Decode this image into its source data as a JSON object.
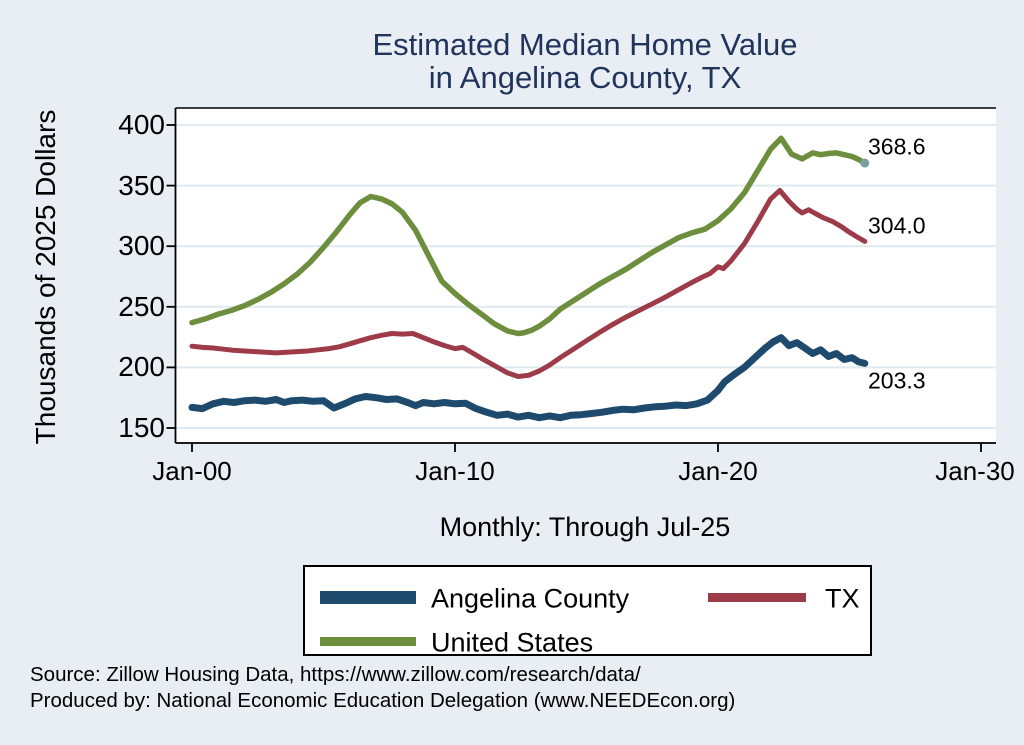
{
  "title": {
    "line1": "Estimated Median Home Value",
    "line2": "in Angelina County, TX"
  },
  "y_axis": {
    "title": "Thousands of 2025 Dollars",
    "ticks": [
      150,
      200,
      250,
      300,
      350,
      400
    ]
  },
  "x_axis": {
    "ticks": [
      {
        "label": "Jan-00",
        "year": 2000
      },
      {
        "label": "Jan-10",
        "year": 2010
      },
      {
        "label": "Jan-20",
        "year": 2020
      },
      {
        "label": "Jan-30",
        "year": 2030
      }
    ],
    "note": "Monthly: Through Jul-25"
  },
  "legend": [
    {
      "label": "Angelina County",
      "color": "#1e4a6d"
    },
    {
      "label": "TX",
      "color": "#9d3b49"
    },
    {
      "label": "United States",
      "color": "#6d8f3d"
    }
  ],
  "source": {
    "line1": "Source: Zillow Housing Data, https://www.zillow.com/research/data/",
    "line2": "Produced by: National Economic Education Delegation (www.NEEDEcon.org)"
  },
  "chart_data": {
    "type": "line",
    "title": "Estimated Median Home Value in Angelina County, TX",
    "xlabel": "Monthly: Through Jul-25",
    "ylabel": "Thousands of 2025 Dollars",
    "x_unit": "decimal year (monthly data, Jan-2000 through Jul-2025)",
    "xlim": [
      1999.35,
      2030.5
    ],
    "ylim": [
      137,
      414
    ],
    "grid": "horizontal",
    "legend_position": "bottom",
    "series": [
      {
        "name": "Angelina County",
        "color": "#1e4a6d",
        "end_label": "203.3",
        "points": [
          [
            2000.0,
            167
          ],
          [
            2000.4,
            166
          ],
          [
            2000.8,
            170
          ],
          [
            2001.2,
            172
          ],
          [
            2001.6,
            171
          ],
          [
            2002.0,
            172.5
          ],
          [
            2002.4,
            173
          ],
          [
            2002.8,
            172
          ],
          [
            2003.2,
            173.5
          ],
          [
            2003.5,
            171
          ],
          [
            2003.8,
            172.5
          ],
          [
            2004.2,
            173
          ],
          [
            2004.6,
            172
          ],
          [
            2005.0,
            172.5
          ],
          [
            2005.4,
            166.5
          ],
          [
            2005.8,
            170
          ],
          [
            2006.2,
            174
          ],
          [
            2006.6,
            176
          ],
          [
            2007.0,
            175
          ],
          [
            2007.4,
            173.5
          ],
          [
            2007.8,
            174
          ],
          [
            2008.2,
            171
          ],
          [
            2008.5,
            168.5
          ],
          [
            2008.8,
            171
          ],
          [
            2009.2,
            170
          ],
          [
            2009.6,
            171
          ],
          [
            2010.0,
            170
          ],
          [
            2010.4,
            170.5
          ],
          [
            2010.8,
            166
          ],
          [
            2011.2,
            163
          ],
          [
            2011.6,
            160.5
          ],
          [
            2012.0,
            161.5
          ],
          [
            2012.4,
            159
          ],
          [
            2012.8,
            160.5
          ],
          [
            2013.2,
            158.5
          ],
          [
            2013.6,
            160
          ],
          [
            2014.0,
            158.5
          ],
          [
            2014.4,
            160.5
          ],
          [
            2014.8,
            161
          ],
          [
            2015.2,
            162
          ],
          [
            2015.6,
            163
          ],
          [
            2016.0,
            164.5
          ],
          [
            2016.4,
            165.5
          ],
          [
            2016.8,
            165
          ],
          [
            2017.2,
            166.5
          ],
          [
            2017.6,
            167.5
          ],
          [
            2018.0,
            168
          ],
          [
            2018.4,
            169
          ],
          [
            2018.8,
            168.5
          ],
          [
            2019.2,
            170
          ],
          [
            2019.6,
            173
          ],
          [
            2020.0,
            181
          ],
          [
            2020.25,
            188
          ],
          [
            2020.6,
            194
          ],
          [
            2021.0,
            200
          ],
          [
            2021.4,
            208
          ],
          [
            2021.8,
            216
          ],
          [
            2022.1,
            221
          ],
          [
            2022.4,
            224.5
          ],
          [
            2022.7,
            218
          ],
          [
            2023.0,
            220.5
          ],
          [
            2023.3,
            216
          ],
          [
            2023.6,
            211.5
          ],
          [
            2023.9,
            214.5
          ],
          [
            2024.2,
            209
          ],
          [
            2024.5,
            211.5
          ],
          [
            2024.8,
            206.5
          ],
          [
            2025.1,
            208
          ],
          [
            2025.35,
            204.5
          ],
          [
            2025.58,
            203.3
          ]
        ]
      },
      {
        "name": "TX",
        "color": "#9d3b49",
        "end_label": "304.0",
        "points": [
          [
            2000.0,
            217.5
          ],
          [
            2000.4,
            216.5
          ],
          [
            2000.8,
            216
          ],
          [
            2001.2,
            215
          ],
          [
            2001.6,
            214
          ],
          [
            2002.0,
            213.5
          ],
          [
            2002.4,
            213
          ],
          [
            2002.8,
            212.5
          ],
          [
            2003.2,
            212
          ],
          [
            2003.6,
            212.5
          ],
          [
            2004.0,
            213
          ],
          [
            2004.4,
            213.5
          ],
          [
            2004.8,
            214.5
          ],
          [
            2005.2,
            215.5
          ],
          [
            2005.6,
            217
          ],
          [
            2006.0,
            219.5
          ],
          [
            2006.4,
            222
          ],
          [
            2006.8,
            224.5
          ],
          [
            2007.2,
            226.5
          ],
          [
            2007.6,
            228
          ],
          [
            2008.0,
            227.5
          ],
          [
            2008.4,
            228
          ],
          [
            2008.8,
            224.5
          ],
          [
            2009.2,
            221
          ],
          [
            2009.6,
            218
          ],
          [
            2010.0,
            215.5
          ],
          [
            2010.3,
            216.5
          ],
          [
            2010.7,
            211.5
          ],
          [
            2011.0,
            207.5
          ],
          [
            2011.5,
            201.5
          ],
          [
            2012.0,
            195.5
          ],
          [
            2012.4,
            192.5
          ],
          [
            2012.8,
            193.5
          ],
          [
            2013.2,
            197
          ],
          [
            2013.6,
            202
          ],
          [
            2014.0,
            208
          ],
          [
            2014.5,
            215
          ],
          [
            2015.0,
            222
          ],
          [
            2015.5,
            229
          ],
          [
            2016.0,
            235.5
          ],
          [
            2016.5,
            241.5
          ],
          [
            2017.0,
            247
          ],
          [
            2017.5,
            252.5
          ],
          [
            2018.0,
            258
          ],
          [
            2018.5,
            264
          ],
          [
            2019.0,
            270
          ],
          [
            2019.4,
            274.5
          ],
          [
            2019.7,
            277.5
          ],
          [
            2020.0,
            283
          ],
          [
            2020.2,
            281.5
          ],
          [
            2020.5,
            288
          ],
          [
            2021.0,
            302
          ],
          [
            2021.5,
            320
          ],
          [
            2022.0,
            339
          ],
          [
            2022.35,
            346
          ],
          [
            2022.7,
            337
          ],
          [
            2023.0,
            330.5
          ],
          [
            2023.2,
            327.5
          ],
          [
            2023.45,
            330
          ],
          [
            2023.7,
            327
          ],
          [
            2024.0,
            323.5
          ],
          [
            2024.35,
            320.5
          ],
          [
            2024.7,
            316
          ],
          [
            2025.0,
            311.5
          ],
          [
            2025.3,
            307.5
          ],
          [
            2025.58,
            304.0
          ]
        ]
      },
      {
        "name": "United States",
        "color": "#6d8f3d",
        "end_label": "368.6",
        "end_dot_color": "#7e9fa2",
        "points": [
          [
            2000.0,
            237
          ],
          [
            2000.5,
            240
          ],
          [
            2001.0,
            244
          ],
          [
            2001.5,
            247
          ],
          [
            2002.0,
            251
          ],
          [
            2002.5,
            256
          ],
          [
            2003.0,
            262
          ],
          [
            2003.5,
            269
          ],
          [
            2004.0,
            277
          ],
          [
            2004.5,
            287
          ],
          [
            2005.0,
            299
          ],
          [
            2005.5,
            312
          ],
          [
            2006.0,
            326
          ],
          [
            2006.4,
            336
          ],
          [
            2006.8,
            341
          ],
          [
            2007.2,
            339
          ],
          [
            2007.6,
            335
          ],
          [
            2008.0,
            328
          ],
          [
            2008.5,
            313
          ],
          [
            2009.0,
            292
          ],
          [
            2009.5,
            271
          ],
          [
            2010.0,
            261
          ],
          [
            2010.5,
            252
          ],
          [
            2011.0,
            244
          ],
          [
            2011.5,
            236
          ],
          [
            2012.0,
            230
          ],
          [
            2012.4,
            228
          ],
          [
            2012.6,
            228.5
          ],
          [
            2012.9,
            230.5
          ],
          [
            2013.2,
            234
          ],
          [
            2013.6,
            240
          ],
          [
            2014.0,
            248
          ],
          [
            2014.5,
            255
          ],
          [
            2015.0,
            262
          ],
          [
            2015.5,
            269
          ],
          [
            2016.0,
            275
          ],
          [
            2016.5,
            281
          ],
          [
            2017.0,
            288
          ],
          [
            2017.5,
            295
          ],
          [
            2018.0,
            301
          ],
          [
            2018.5,
            307
          ],
          [
            2019.0,
            311
          ],
          [
            2019.5,
            314
          ],
          [
            2020.0,
            321
          ],
          [
            2020.5,
            331
          ],
          [
            2021.0,
            344
          ],
          [
            2021.5,
            362
          ],
          [
            2022.0,
            380
          ],
          [
            2022.4,
            389
          ],
          [
            2022.8,
            376
          ],
          [
            2023.2,
            372
          ],
          [
            2023.6,
            377
          ],
          [
            2023.9,
            375.5
          ],
          [
            2024.2,
            376.5
          ],
          [
            2024.5,
            377
          ],
          [
            2024.8,
            375.5
          ],
          [
            2025.1,
            374
          ],
          [
            2025.35,
            371.5
          ],
          [
            2025.58,
            368.6
          ]
        ]
      }
    ]
  }
}
